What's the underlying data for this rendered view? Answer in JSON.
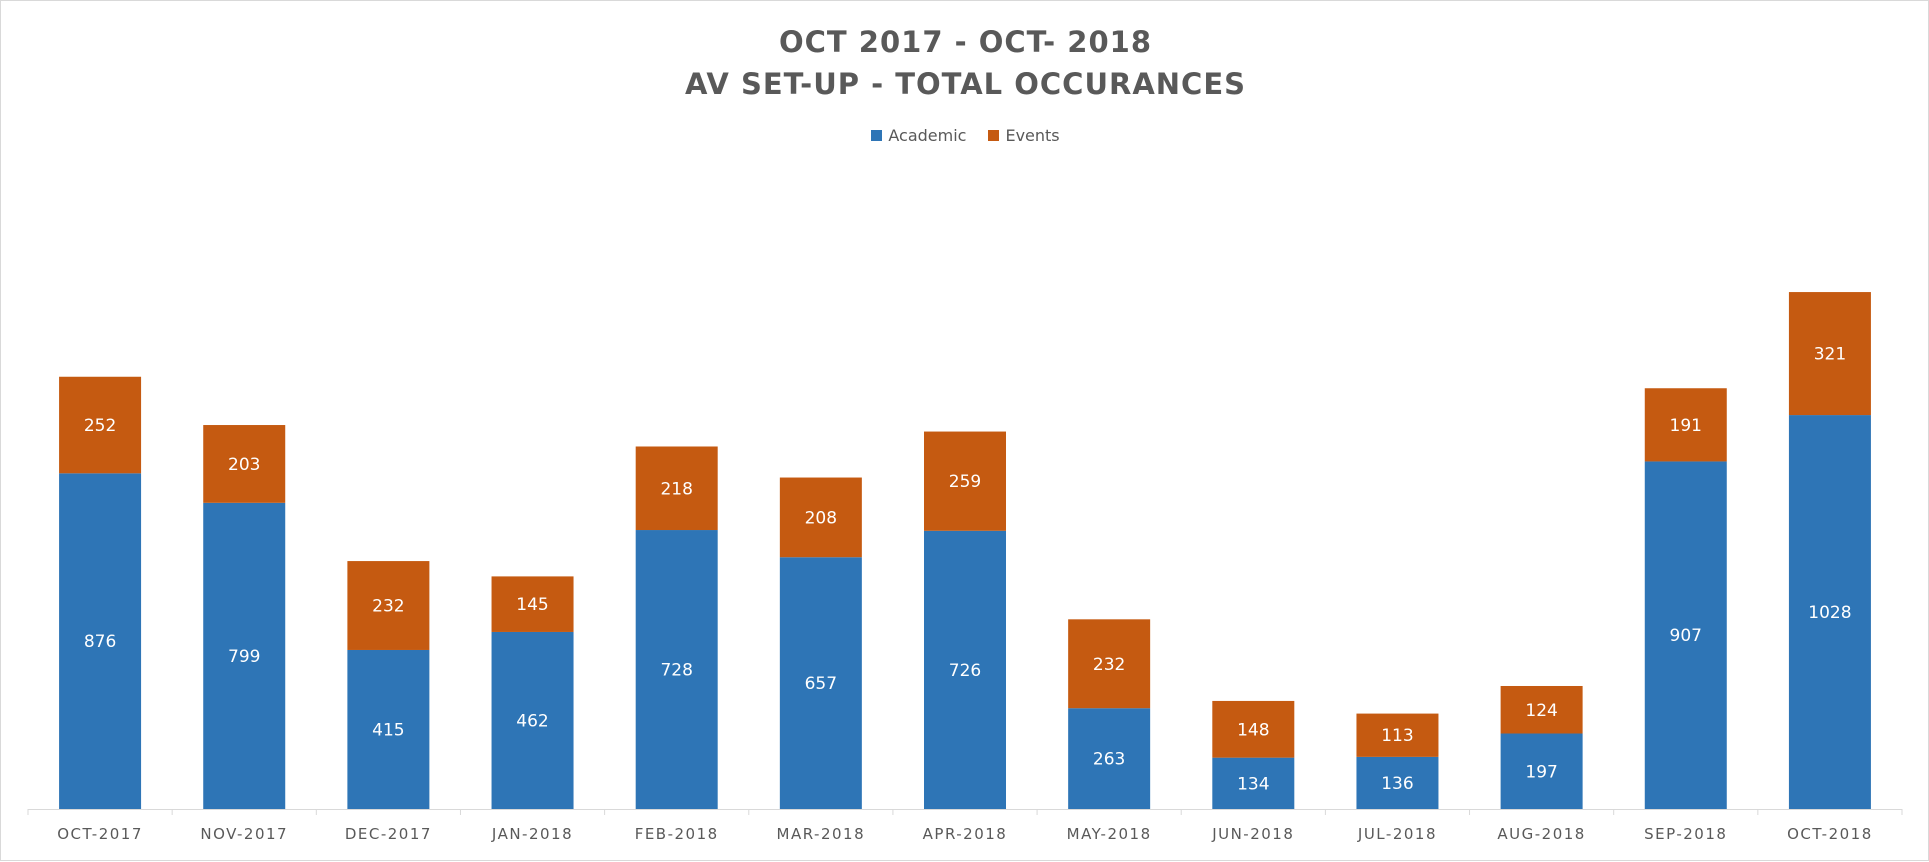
{
  "chart_data": {
    "type": "bar",
    "stacked": true,
    "title": "OCT 2017 - OCT- 2018",
    "subtitle": "AV SET-UP - TOTAL OCCURANCES",
    "xlabel": "",
    "ylabel": "",
    "categories": [
      "OCT-2017",
      "NOV-2017",
      "DEC-2017",
      "JAN-2018",
      "FEB-2018",
      "MAR-2018",
      "APR-2018",
      "MAY-2018",
      "JUN-2018",
      "JUL-2018",
      "AUG-2018",
      "SEP-2018",
      "OCT-2018"
    ],
    "series": [
      {
        "name": "Academic",
        "color": "#2e75b6",
        "values": [
          876,
          799,
          415,
          462,
          728,
          657,
          726,
          263,
          134,
          136,
          197,
          907,
          1028
        ]
      },
      {
        "name": "Events",
        "color": "#c55a11",
        "values": [
          252,
          203,
          232,
          145,
          218,
          208,
          259,
          232,
          148,
          113,
          124,
          191,
          321
        ]
      }
    ],
    "ylim": [
      0,
      1520
    ],
    "grid": false,
    "legend": "top-center",
    "data_labels": true
  }
}
